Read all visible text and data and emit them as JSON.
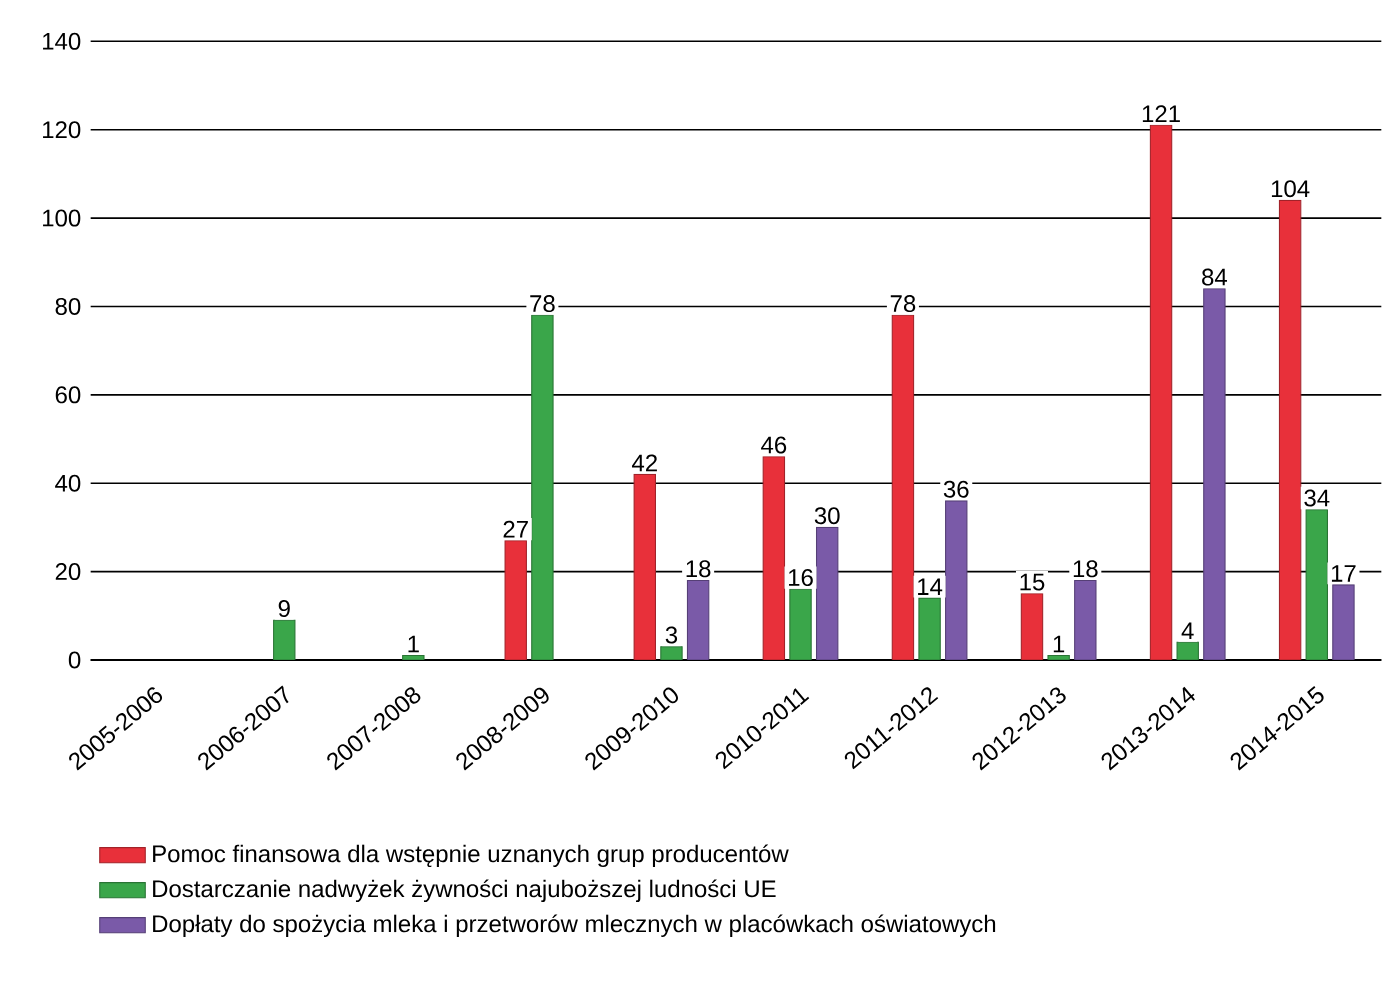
{
  "chart_data": {
    "type": "bar",
    "categories": [
      "2005-2006",
      "2006-2007",
      "2007-2008",
      "2008-2009",
      "2009-2010",
      "2010-2011",
      "2011-2012",
      "2012-2013",
      "2013-2014",
      "2014-2015"
    ],
    "series": [
      {
        "name": "Pomoc finansowa dla wstępnie uznanych grup producentów",
        "color": "#e8303a",
        "values": [
          null,
          null,
          null,
          27,
          42,
          46,
          78,
          15,
          121,
          104
        ]
      },
      {
        "name": "Dostarczanie nadwyżek żywności najuboższej ludności UE",
        "color": "#3aa64a",
        "values": [
          null,
          9,
          1,
          78,
          3,
          16,
          14,
          1,
          4,
          34
        ]
      },
      {
        "name": "Dopłaty do spożycia mleka i przetworów mlecznych w placówkach oświatowych",
        "color": "#7a5aa8",
        "values": [
          null,
          null,
          null,
          null,
          18,
          30,
          36,
          18,
          84,
          17
        ]
      }
    ],
    "ylim": [
      0,
      140
    ],
    "yticks": [
      0,
      20,
      40,
      60,
      80,
      100,
      120,
      140
    ],
    "grid": "y",
    "legend": "bottom",
    "data_labels": true
  }
}
